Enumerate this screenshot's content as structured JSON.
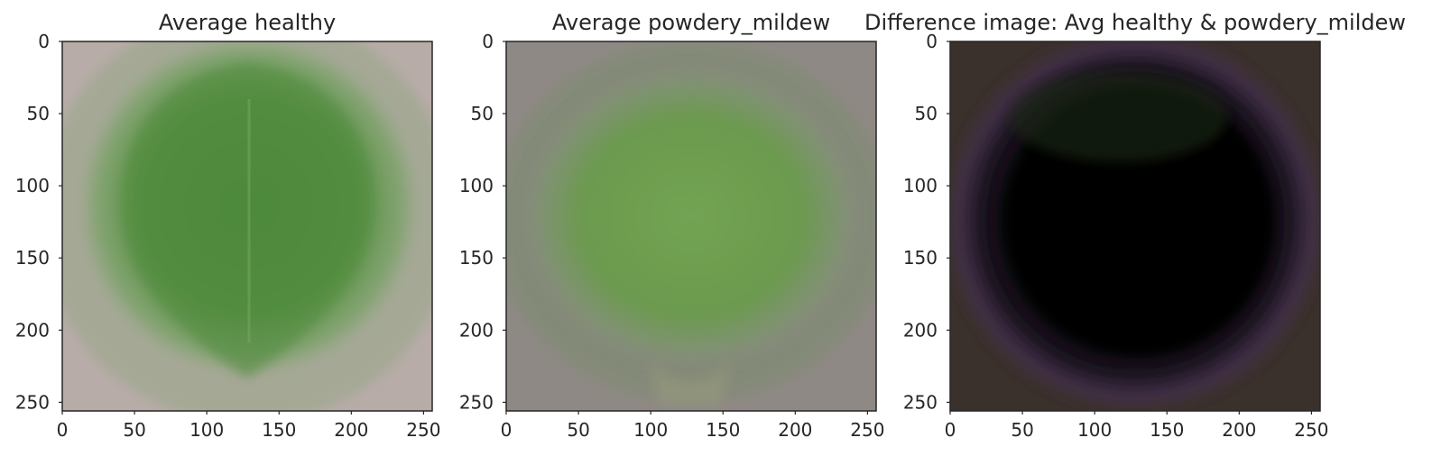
{
  "chart_data": [
    {
      "type": "image",
      "title": "Average healthy",
      "xlim": [
        0,
        256
      ],
      "ylim": [
        256,
        0
      ],
      "xticks": [
        0,
        50,
        100,
        150,
        200,
        250
      ],
      "yticks": [
        0,
        50,
        100,
        150,
        200,
        250
      ],
      "grid": false,
      "colors": {
        "background": "#b8aca8",
        "leaf": "#4f8a3c"
      }
    },
    {
      "type": "image",
      "title": "Average powdery_mildew",
      "xlim": [
        0,
        256
      ],
      "ylim": [
        256,
        0
      ],
      "xticks": [
        0,
        50,
        100,
        150,
        200,
        250
      ],
      "yticks": [
        0,
        50,
        100,
        150,
        200,
        250
      ],
      "grid": false,
      "colors": {
        "background": "#8e8984",
        "leaf": "#6fa04e"
      }
    },
    {
      "type": "image",
      "title": "Difference image: Avg healthy & powdery_mildew",
      "xlim": [
        0,
        256
      ],
      "ylim": [
        256,
        0
      ],
      "xticks": [
        0,
        50,
        100,
        150,
        200,
        250
      ],
      "yticks": [
        0,
        50,
        100,
        150,
        200,
        250
      ],
      "grid": false,
      "colors": {
        "background": "#3a302c",
        "leaf": "#000000",
        "rim": "#4a3258"
      }
    }
  ]
}
